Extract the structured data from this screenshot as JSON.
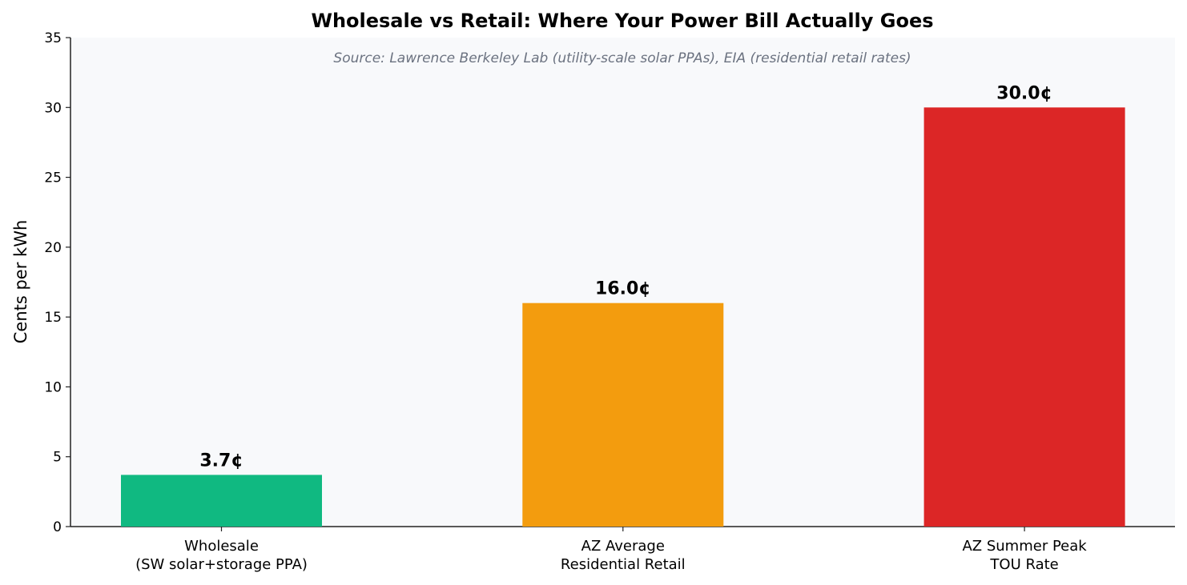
{
  "chart_data": {
    "type": "bar",
    "title": "Wholesale vs Retail: Where Your Power Bill Actually Goes",
    "subtitle": "Source: Lawrence Berkeley Lab (utility-scale solar PPAs), EIA (residential retail rates)",
    "y_label": "Cents per kWh",
    "categories": [
      "Wholesale\n(SW solar+storage PPA)",
      "AZ Average\nResidential Retail",
      "AZ Summer Peak\nTOU Rate"
    ],
    "values": [
      3.7,
      16.0,
      30.0
    ],
    "value_labels": [
      "3.7¢",
      "16.0¢",
      "30.0¢"
    ],
    "colors": [
      "#10b981",
      "#f39c0e",
      "#dc2626"
    ],
    "ylim": [
      0,
      35
    ],
    "yticks": [
      0,
      5,
      10,
      15,
      20,
      25,
      30,
      35
    ],
    "grid": false
  }
}
